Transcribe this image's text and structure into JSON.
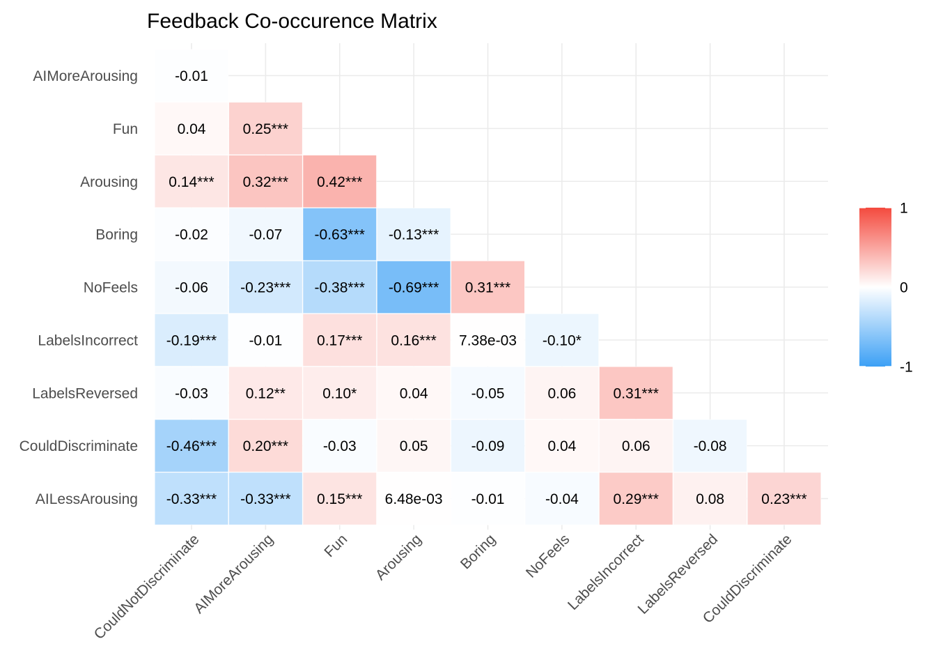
{
  "chart_data": {
    "type": "heatmap",
    "title": "Feedback Co-occurence Matrix",
    "xlabel": "",
    "ylabel": "",
    "x_categories": [
      "CouldNotDiscriminate",
      "AIMoreArousing",
      "Fun",
      "Arousing",
      "Boring",
      "NoFeels",
      "LabelsIncorrect",
      "LabelsReversed",
      "CouldDiscriminate"
    ],
    "y_categories": [
      "AIMoreArousing",
      "Fun",
      "Arousing",
      "Boring",
      "NoFeels",
      "LabelsIncorrect",
      "LabelsReversed",
      "CouldDiscriminate",
      "AILessArousing"
    ],
    "cells": [
      {
        "x": "CouldNotDiscriminate",
        "y": "AIMoreArousing",
        "value": -0.01,
        "label": "-0.01"
      },
      {
        "x": "CouldNotDiscriminate",
        "y": "Fun",
        "value": 0.04,
        "label": "0.04"
      },
      {
        "x": "AIMoreArousing",
        "y": "Fun",
        "value": 0.25,
        "label": "0.25***"
      },
      {
        "x": "CouldNotDiscriminate",
        "y": "Arousing",
        "value": 0.14,
        "label": "0.14***"
      },
      {
        "x": "AIMoreArousing",
        "y": "Arousing",
        "value": 0.32,
        "label": "0.32***"
      },
      {
        "x": "Fun",
        "y": "Arousing",
        "value": 0.42,
        "label": "0.42***"
      },
      {
        "x": "CouldNotDiscriminate",
        "y": "Boring",
        "value": -0.02,
        "label": "-0.02"
      },
      {
        "x": "AIMoreArousing",
        "y": "Boring",
        "value": -0.07,
        "label": "-0.07"
      },
      {
        "x": "Fun",
        "y": "Boring",
        "value": -0.63,
        "label": "-0.63***"
      },
      {
        "x": "Arousing",
        "y": "Boring",
        "value": -0.13,
        "label": "-0.13***"
      },
      {
        "x": "CouldNotDiscriminate",
        "y": "NoFeels",
        "value": -0.06,
        "label": "-0.06"
      },
      {
        "x": "AIMoreArousing",
        "y": "NoFeels",
        "value": -0.23,
        "label": "-0.23***"
      },
      {
        "x": "Fun",
        "y": "NoFeels",
        "value": -0.38,
        "label": "-0.38***"
      },
      {
        "x": "Arousing",
        "y": "NoFeels",
        "value": -0.69,
        "label": "-0.69***"
      },
      {
        "x": "Boring",
        "y": "NoFeels",
        "value": 0.31,
        "label": "0.31***"
      },
      {
        "x": "CouldNotDiscriminate",
        "y": "LabelsIncorrect",
        "value": -0.19,
        "label": "-0.19***"
      },
      {
        "x": "AIMoreArousing",
        "y": "LabelsIncorrect",
        "value": -0.01,
        "label": "-0.01"
      },
      {
        "x": "Fun",
        "y": "LabelsIncorrect",
        "value": 0.17,
        "label": "0.17***"
      },
      {
        "x": "Arousing",
        "y": "LabelsIncorrect",
        "value": 0.16,
        "label": "0.16***"
      },
      {
        "x": "Boring",
        "y": "LabelsIncorrect",
        "value": 0.00738,
        "label": "7.38e-03"
      },
      {
        "x": "NoFeels",
        "y": "LabelsIncorrect",
        "value": -0.1,
        "label": "-0.10*"
      },
      {
        "x": "CouldNotDiscriminate",
        "y": "LabelsReversed",
        "value": -0.03,
        "label": "-0.03"
      },
      {
        "x": "AIMoreArousing",
        "y": "LabelsReversed",
        "value": 0.12,
        "label": "0.12**"
      },
      {
        "x": "Fun",
        "y": "LabelsReversed",
        "value": 0.1,
        "label": "0.10*"
      },
      {
        "x": "Arousing",
        "y": "LabelsReversed",
        "value": 0.04,
        "label": "0.04"
      },
      {
        "x": "Boring",
        "y": "LabelsReversed",
        "value": -0.05,
        "label": "-0.05"
      },
      {
        "x": "NoFeels",
        "y": "LabelsReversed",
        "value": 0.06,
        "label": "0.06"
      },
      {
        "x": "LabelsIncorrect",
        "y": "LabelsReversed",
        "value": 0.31,
        "label": "0.31***"
      },
      {
        "x": "CouldNotDiscriminate",
        "y": "CouldDiscriminate",
        "value": -0.46,
        "label": "-0.46***"
      },
      {
        "x": "AIMoreArousing",
        "y": "CouldDiscriminate",
        "value": 0.2,
        "label": "0.20***"
      },
      {
        "x": "Fun",
        "y": "CouldDiscriminate",
        "value": -0.03,
        "label": "-0.03"
      },
      {
        "x": "Arousing",
        "y": "CouldDiscriminate",
        "value": 0.05,
        "label": "0.05"
      },
      {
        "x": "Boring",
        "y": "CouldDiscriminate",
        "value": -0.09,
        "label": "-0.09"
      },
      {
        "x": "NoFeels",
        "y": "CouldDiscriminate",
        "value": 0.04,
        "label": "0.04"
      },
      {
        "x": "LabelsIncorrect",
        "y": "CouldDiscriminate",
        "value": 0.06,
        "label": "0.06"
      },
      {
        "x": "LabelsReversed",
        "y": "CouldDiscriminate",
        "value": -0.08,
        "label": "-0.08"
      },
      {
        "x": "CouldNotDiscriminate",
        "y": "AILessArousing",
        "value": -0.33,
        "label": "-0.33***"
      },
      {
        "x": "AIMoreArousing",
        "y": "AILessArousing",
        "value": -0.33,
        "label": "-0.33***"
      },
      {
        "x": "Fun",
        "y": "AILessArousing",
        "value": 0.15,
        "label": "0.15***"
      },
      {
        "x": "Arousing",
        "y": "AILessArousing",
        "value": 0.00648,
        "label": "6.48e-03"
      },
      {
        "x": "Boring",
        "y": "AILessArousing",
        "value": -0.01,
        "label": "-0.01"
      },
      {
        "x": "NoFeels",
        "y": "AILessArousing",
        "value": -0.04,
        "label": "-0.04"
      },
      {
        "x": "LabelsIncorrect",
        "y": "AILessArousing",
        "value": 0.29,
        "label": "0.29***"
      },
      {
        "x": "LabelsReversed",
        "y": "AILessArousing",
        "value": 0.08,
        "label": "0.08"
      },
      {
        "x": "CouldDiscriminate",
        "y": "AILessArousing",
        "value": 0.23,
        "label": "0.23***"
      }
    ],
    "color_scale": {
      "low": "#3ca0f5",
      "mid": "#ffffff",
      "high": "#f44a3e",
      "min": -1,
      "max": 1,
      "ticks": [
        "1",
        "0",
        "-1"
      ]
    },
    "legend_placement": "right",
    "grid": true
  }
}
